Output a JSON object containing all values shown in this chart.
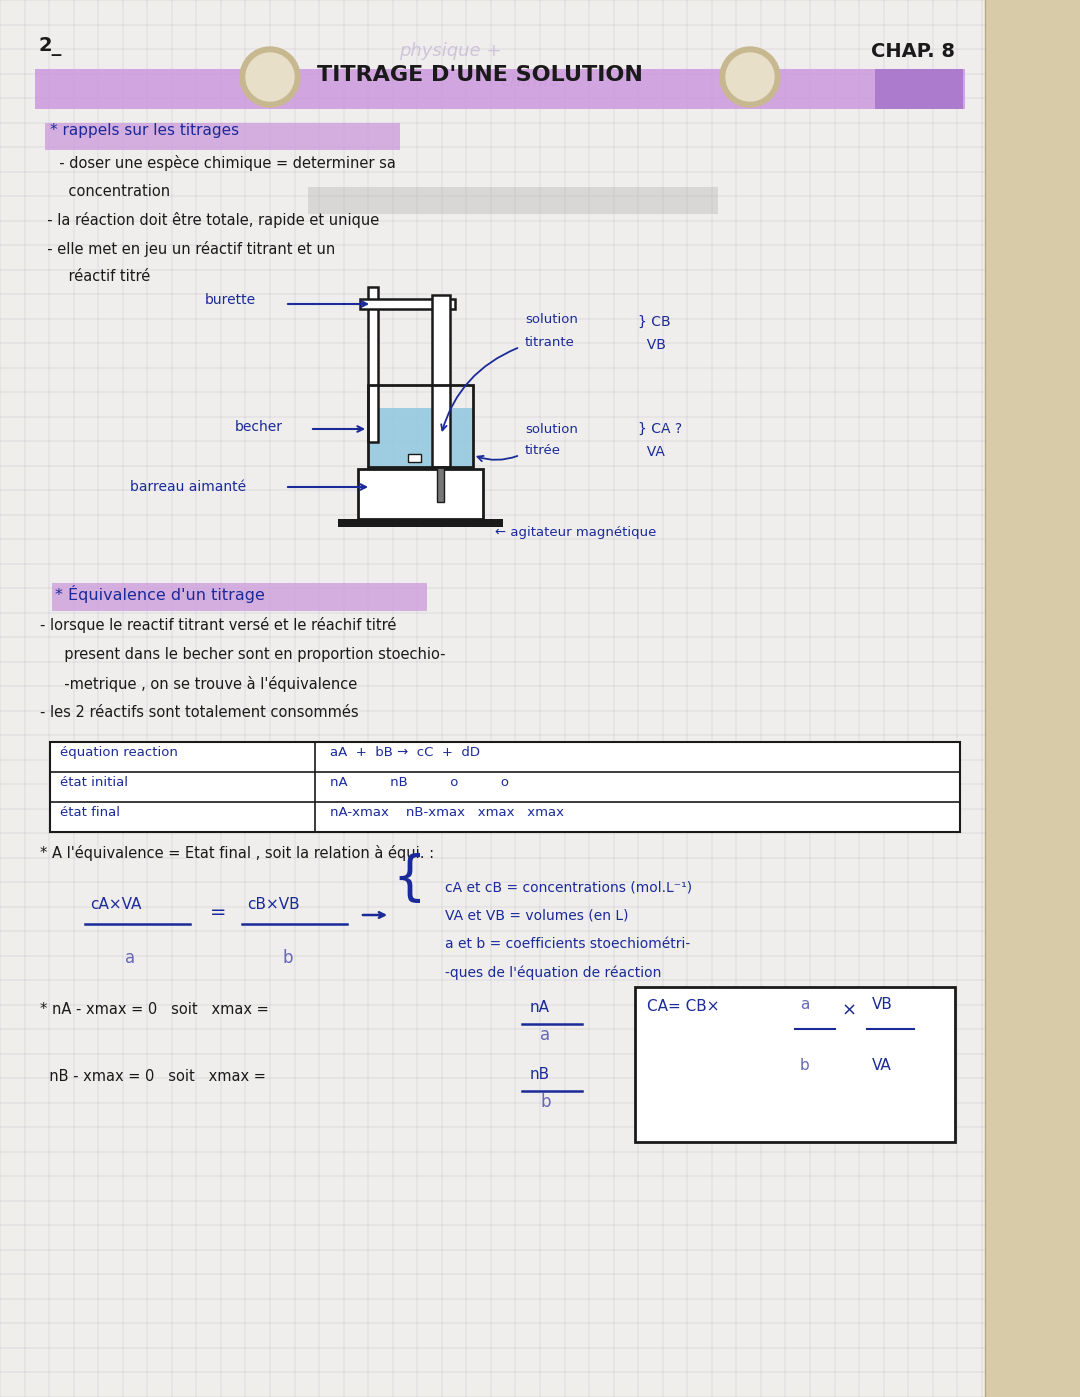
{
  "page_bg": "#f0eeeb",
  "grid_color": "#b8b8cc",
  "right_strip_color": "#d8cba8",
  "title_highlight": "#cc99dd",
  "section_highlight": "#cc99dd",
  "highlight_gray": "#bbbbbb",
  "becher_fill": "#90c8e0",
  "ink_color": "#1a2a99",
  "black_color": "#111111",
  "dark_ink": "#1a1a1a",
  "chapter_text": "CHAP. 8",
  "title_text": "TITRAGE D'UNE SOLUTION",
  "page_num": "2_",
  "section1_title": "rappels sur les titrages",
  "bullet1a": "  - doser une espèce chimique = determiner sa",
  "bullet1a2": "    concentration",
  "bullet1b": "  - la réaction doit être totale, rapide et unique",
  "bullet1c": "  - elle met en jeu un réactif titrant et un",
  "bullet1c2": "    réactif titré",
  "label_burette": "burette",
  "label_becher": "becher",
  "label_barreau": "barreau aimanté",
  "label_sol_titrante": "solution",
  "label_titrante": "titrante",
  "label_sol_titree": "solution",
  "label_titree": "titrée",
  "label_agitateur": "← agitateur magnétique",
  "section2_title": "Équivalence d'un titrage",
  "bullet2a": "  - lorsque le reactif titrant versé et le réachif titré",
  "bullet2b": "    present dans le becher sont en proportion stoechio-",
  "bullet2c": "    -metrique , on se trouve à l'équivalence",
  "bullet2d": "  - les 2 réactifs sont totalement consommés",
  "equiv_line1": "* A l'équivalence = Etat final , soit la relation à équi. :",
  "brace_lines": [
    "cA et cB = concentrations (mol.L⁻¹)",
    "VA et VB = volumes (en L)",
    "a et b = coefficients stoechiométri-",
    "-ques de l'équation de réaction"
  ],
  "eq1a": "* nA - xmax = 0   soit   xmax =",
  "eq2a": "  nB - xmax = 0   soit   xmax ="
}
